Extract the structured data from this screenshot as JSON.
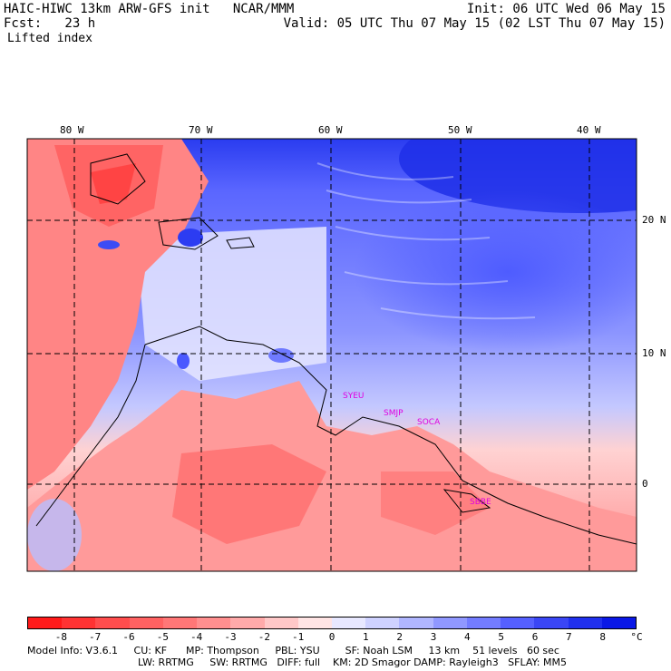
{
  "header": {
    "title": "HAIC-HIWC 13km ARW-GFS init   NCAR/MMM",
    "forecast": "Fcst:   23 h",
    "init": "Init: 06 UTC Wed 06 May 15",
    "valid": "Valid: 05 UTC Thu 07 May 15 (02 LST Thu 07 May 15)",
    "field": "Lifted index"
  },
  "map": {
    "lon_labels": [
      "80 W",
      "70 W",
      "60 W",
      "50 W",
      "40 W"
    ],
    "lat_labels": [
      "20 N",
      "10 N",
      "0"
    ],
    "stations": [
      "SYEU",
      "SMJP",
      "SOCA",
      "SBBE"
    ]
  },
  "colorbar": {
    "unit": "°C",
    "ticks": [
      "-8",
      "-7",
      "-6",
      "-5",
      "-4",
      "-3",
      "-2",
      "-1",
      "0",
      "1",
      "2",
      "3",
      "4",
      "5",
      "6",
      "7",
      "8"
    ],
    "colors": [
      "#ff1a1a",
      "#ff3333",
      "#ff4d4d",
      "#ff6262",
      "#ff7777",
      "#ff8f8f",
      "#ffaaaa",
      "#ffc8c8",
      "#ffe4e4",
      "#e8e8ff",
      "#cfd2ff",
      "#b0b6ff",
      "#9098ff",
      "#737cff",
      "#5560ff",
      "#3a46f5",
      "#2030ee",
      "#0a18e6"
    ]
  },
  "footer": {
    "line1": "Model Info: V3.6.1     CU: KF      MP: Thompson     PBL: YSU        SF: Noah LSM     13 km    51 levels   60 sec",
    "line2": "LW: RRTMG     SW: RRTMG   DIFF: full    KM: 2D Smagor DAMP: Rayleigh3   SFLAY: MM5"
  }
}
